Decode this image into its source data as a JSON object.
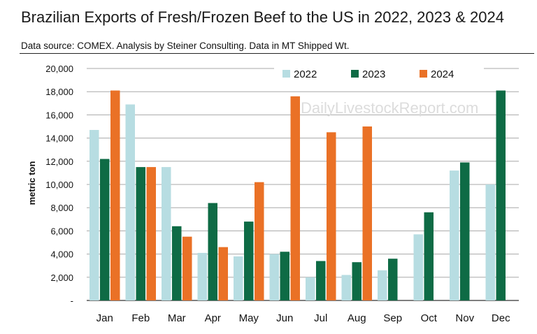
{
  "chart_data": {
    "type": "bar",
    "title": "Brazilian Exports of Fresh/Frozen Beef to the US in 2022, 2023 & 2024",
    "subtitle": "Data source: COMEX.  Analysis by Steiner Consulting.  Data in MT Shipped Wt.",
    "watermark": "DailyLivestockReport.com",
    "xlabel": "",
    "ylabel": "metric ton",
    "ylim": [
      0,
      20000
    ],
    "yticks": [
      "-",
      "2,000",
      "4,000",
      "6,000",
      "8,000",
      "10,000",
      "12,000",
      "14,000",
      "16,000",
      "18,000",
      "20,000"
    ],
    "categories": [
      "Jan",
      "Feb",
      "Mar",
      "Apr",
      "May",
      "Jun",
      "Jul",
      "Aug",
      "Sep",
      "Oct",
      "Nov",
      "Dec"
    ],
    "legend_position": "top-right",
    "grid": true,
    "series": [
      {
        "name": "2022",
        "color": "#b7dde2",
        "values": [
          14700,
          16900,
          11500,
          4100,
          3800,
          4000,
          2000,
          2200,
          2600,
          5700,
          11200,
          10000
        ]
      },
      {
        "name": "2023",
        "color": "#0e6b45",
        "values": [
          12200,
          11500,
          6400,
          8400,
          6800,
          4200,
          3400,
          3300,
          3600,
          7600,
          11900,
          18100
        ]
      },
      {
        "name": "2024",
        "color": "#ea7126",
        "values": [
          18100,
          11500,
          5500,
          4600,
          10200,
          17600,
          14500,
          15000,
          null,
          null,
          null,
          null
        ]
      }
    ]
  }
}
